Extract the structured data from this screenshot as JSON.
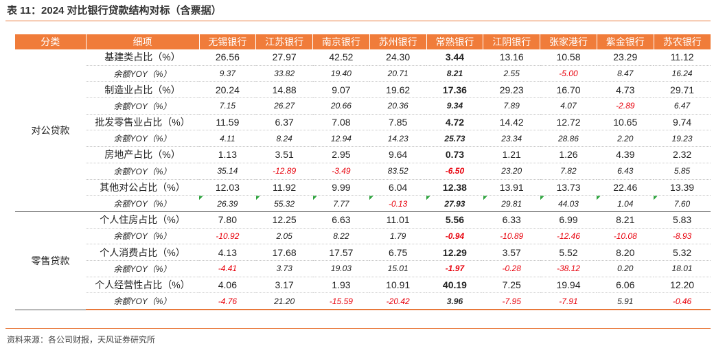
{
  "header": {
    "title": "表 11：2024 对比银行贷款结构对标（含票据）"
  },
  "table": {
    "columns": [
      "分类",
      "细项",
      "无锡银行",
      "江苏银行",
      "南京银行",
      "苏州银行",
      "常熟银行",
      "江阴银行",
      "张家港行",
      "紫金银行",
      "苏农银行"
    ],
    "groups": [
      {
        "name": "对公贷款",
        "rows": [
          {
            "label": "基建类占比（%）",
            "values": [
              "26.56",
              "27.97",
              "42.52",
              "24.30",
              "3.44",
              "13.16",
              "10.58",
              "23.29",
              "11.12"
            ]
          },
          {
            "label": "余额YOY（%）",
            "values": [
              "9.37",
              "33.82",
              "19.40",
              "20.71",
              "8.21",
              "2.55",
              "-5.00",
              "8.47",
              "16.24"
            ]
          },
          {
            "label": "制造业占比（%）",
            "values": [
              "20.24",
              "14.88",
              "9.07",
              "19.62",
              "17.36",
              "29.23",
              "16.70",
              "4.73",
              "29.71"
            ]
          },
          {
            "label": "余额YOY（%）",
            "values": [
              "7.15",
              "26.27",
              "20.66",
              "20.36",
              "9.34",
              "7.89",
              "4.07",
              "-2.89",
              "6.47"
            ]
          },
          {
            "label": "批发零售业占比（%）",
            "values": [
              "11.59",
              "6.37",
              "7.08",
              "7.85",
              "4.72",
              "14.42",
              "12.72",
              "10.65",
              "9.74"
            ]
          },
          {
            "label": "余额YOY（%）",
            "values": [
              "4.11",
              "8.24",
              "12.94",
              "14.23",
              "25.73",
              "23.34",
              "28.86",
              "2.20",
              "19.23"
            ]
          },
          {
            "label": "房地产占比（%）",
            "values": [
              "1.13",
              "3.51",
              "2.95",
              "9.64",
              "0.73",
              "1.21",
              "1.26",
              "4.39",
              "2.32"
            ]
          },
          {
            "label": "余额YOY（%）",
            "values": [
              "35.14",
              "-12.89",
              "-3.49",
              "83.52",
              "-6.50",
              "23.20",
              "7.82",
              "6.43",
              "5.85"
            ]
          },
          {
            "label": "其他对公占比（%）",
            "values": [
              "12.03",
              "11.92",
              "9.99",
              "6.04",
              "12.38",
              "13.91",
              "13.73",
              "22.46",
              "13.39"
            ]
          },
          {
            "label": "余额YOY（%）",
            "values": [
              "26.39",
              "55.32",
              "7.77",
              "-0.13",
              "27.93",
              "29.81",
              "44.03",
              "1.04",
              "7.60"
            ]
          }
        ]
      },
      {
        "name": "零售贷款",
        "rows": [
          {
            "label": "个人住房占比（%）",
            "values": [
              "7.80",
              "12.25",
              "6.63",
              "11.01",
              "5.56",
              "6.33",
              "6.99",
              "8.21",
              "5.83"
            ]
          },
          {
            "label": "余额YOY（%）",
            "values": [
              "-10.92",
              "2.05",
              "8.22",
              "1.79",
              "-0.94",
              "-10.89",
              "-12.46",
              "-10.08",
              "-8.93"
            ]
          },
          {
            "label": "个人消费占比（%）",
            "values": [
              "4.13",
              "17.68",
              "17.57",
              "6.75",
              "12.29",
              "3.57",
              "5.52",
              "8.20",
              "5.32"
            ]
          },
          {
            "label": "余额YOY（%）",
            "values": [
              "-4.41",
              "3.73",
              "19.03",
              "15.01",
              "-1.97",
              "-0.28",
              "-38.12",
              "0.20",
              "18.01"
            ]
          },
          {
            "label": "个人经营性占比（%）",
            "values": [
              "4.06",
              "3.17",
              "1.93",
              "10.91",
              "40.19",
              "7.25",
              "19.94",
              "6.06",
              "12.20"
            ]
          },
          {
            "label": "余额YOY（%）",
            "values": [
              "-4.76",
              "21.20",
              "-15.59",
              "-20.42",
              "3.96",
              "-7.95",
              "-7.91",
              "5.91",
              "-0.46"
            ]
          }
        ]
      }
    ]
  },
  "footer": {
    "source": "资料来源：各公司财报，天风证券研究所"
  }
}
